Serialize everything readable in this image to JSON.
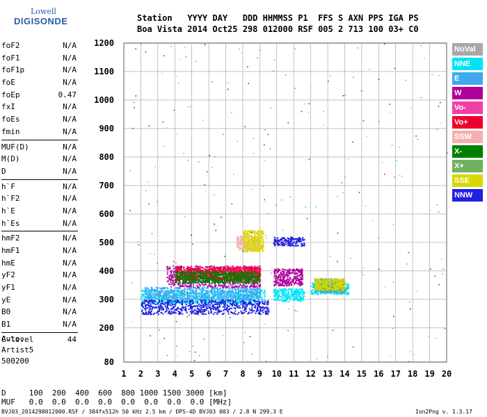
{
  "logo": {
    "line1": "Lowell",
    "line2": "DIGISONDE"
  },
  "header": {
    "line1": "Station   YYYY DAY   DDD HHMMSS P1  FFS S AXN PPS IGA PS",
    "line2": "Boa Vista 2014 Oct25 298 012000 RSF 005 2 713 100 03+ C0"
  },
  "params": [
    {
      "group": [
        {
          "label": "foF2",
          "value": "N/A"
        },
        {
          "label": "foF1",
          "value": "N/A"
        },
        {
          "label": "foF1p",
          "value": "N/A"
        },
        {
          "label": "foE",
          "value": "N/A"
        },
        {
          "label": "foEp",
          "value": "0.47"
        },
        {
          "label": "fxI",
          "value": "N/A"
        },
        {
          "label": "foEs",
          "value": "N/A"
        },
        {
          "label": "fmin",
          "value": "N/A"
        }
      ]
    },
    {
      "group": [
        {
          "label": "MUF(D)",
          "value": "N/A"
        },
        {
          "label": "M(D)",
          "value": "N/A"
        },
        {
          "label": "D",
          "value": "N/A"
        }
      ]
    },
    {
      "group": [
        {
          "label": "h`F",
          "value": "N/A"
        },
        {
          "label": "h`F2",
          "value": "N/A"
        },
        {
          "label": "h`E",
          "value": "N/A"
        },
        {
          "label": "h`Es",
          "value": "N/A"
        }
      ]
    },
    {
      "group": [
        {
          "label": "hmF2",
          "value": "N/A"
        },
        {
          "label": "hmF1",
          "value": "N/A"
        },
        {
          "label": "hmE",
          "value": "N/A"
        },
        {
          "label": "yF2",
          "value": "N/A"
        },
        {
          "label": "yF1",
          "value": "N/A"
        },
        {
          "label": "yE",
          "value": "N/A"
        },
        {
          "label": "B0",
          "value": "N/A"
        },
        {
          "label": "B1",
          "value": "N/A"
        }
      ]
    },
    {
      "group": [
        {
          "label": "C-level",
          "value": "44"
        }
      ]
    }
  ],
  "auto": {
    "line1": "Auto:",
    "line2": "Artist5",
    "line3": "500200"
  },
  "bottom": {
    "d_line": "D     100  200  400  600  800 1000 1500 3000 [km]",
    "muf_line": "MUF   0.0  0.0  0.0  0.0  0.0  0.0  0.0  0.0 [MHz]"
  },
  "footer": {
    "left": "BVJ03_2014298012000.RSF / 384fx512h 50 kHz 2.5 km / DPS-4D BVJ03 003 / 2.8 N 299.3 E",
    "right": "Ion2Png v. 1.3.17"
  },
  "legend": [
    {
      "label": "NoVal",
      "color": "#a8a8a8"
    },
    {
      "label": "NNE",
      "color": "#00e4f8"
    },
    {
      "label": "E",
      "color": "#40a8f0"
    },
    {
      "label": "W",
      "color": "#b0009c"
    },
    {
      "label": "Vo-",
      "color": "#f040a8"
    },
    {
      "label": "Vo+",
      "color": "#f00030"
    },
    {
      "label": "SSW",
      "color": "#f4b0b0"
    },
    {
      "label": "X-",
      "color": "#008000"
    },
    {
      "label": "X+",
      "color": "#70b060"
    },
    {
      "label": "SSE",
      "color": "#d8d800"
    },
    {
      "label": "NNW",
      "color": "#2020e0"
    }
  ],
  "chart_data": {
    "type": "scatter",
    "x_ticks": [
      "1",
      "2",
      "3",
      "4",
      "5",
      "6",
      "7",
      "8",
      "9",
      "10",
      "11",
      "12",
      "13",
      "14",
      "15",
      "16",
      "17",
      "18",
      "19",
      "20"
    ],
    "y_ticks": [
      "80",
      "200",
      "300",
      "400",
      "500",
      "600",
      "700",
      "800",
      "900",
      "1000",
      "1100",
      "1200"
    ],
    "xlim": [
      1,
      20
    ],
    "ylim": [
      80,
      1200
    ],
    "grid": true,
    "legend_position": "right",
    "series": [
      {
        "name": "NNE",
        "clusters": [
          {
            "x": [
              2.0,
              9.3
            ],
            "y": [
              285,
              335
            ]
          },
          {
            "x": [
              9.8,
              11.6
            ],
            "y": [
              295,
              340
            ]
          },
          {
            "x": [
              12.0,
              14.2
            ],
            "y": [
              320,
              360
            ]
          }
        ]
      },
      {
        "name": "E",
        "clusters": [
          {
            "x": [
              2.2,
              9.0
            ],
            "y": [
              300,
              345
            ]
          },
          {
            "x": [
              12.2,
              14.0
            ],
            "y": [
              325,
              365
            ]
          }
        ]
      },
      {
        "name": "W",
        "clusters": [
          {
            "x": [
              3.5,
              9.0
            ],
            "y": [
              345,
              420
            ]
          },
          {
            "x": [
              9.8,
              11.5
            ],
            "y": [
              350,
              410
            ]
          }
        ]
      },
      {
        "name": "Vo-",
        "clusters": [
          {
            "x": [
              7.0,
              9.0
            ],
            "y": [
              360,
              420
            ]
          }
        ]
      },
      {
        "name": "Vo+",
        "clusters": [
          {
            "x": [
              4.0,
              9.0
            ],
            "y": [
              370,
              415
            ]
          }
        ]
      },
      {
        "name": "SSW",
        "clusters": [
          {
            "x": [
              7.6,
              9.0
            ],
            "y": [
              475,
              525
            ]
          }
        ]
      },
      {
        "name": "X-",
        "clusters": [
          {
            "x": [
              4.0,
              9.0
            ],
            "y": [
              360,
              400
            ]
          }
        ]
      },
      {
        "name": "X+",
        "clusters": [
          {
            "x": [
              12.2,
              14.0
            ],
            "y": [
              330,
              375
            ]
          }
        ]
      },
      {
        "name": "SSE",
        "clusters": [
          {
            "x": [
              8.0,
              9.2
            ],
            "y": [
              470,
              545
            ]
          },
          {
            "x": [
              12.2,
              14.0
            ],
            "y": [
              335,
              375
            ]
          }
        ]
      },
      {
        "name": "NNW",
        "clusters": [
          {
            "x": [
              2.0,
              9.5
            ],
            "y": [
              250,
              300
            ]
          },
          {
            "x": [
              9.8,
              11.6
            ],
            "y": [
              490,
              520
            ]
          }
        ]
      }
    ]
  }
}
